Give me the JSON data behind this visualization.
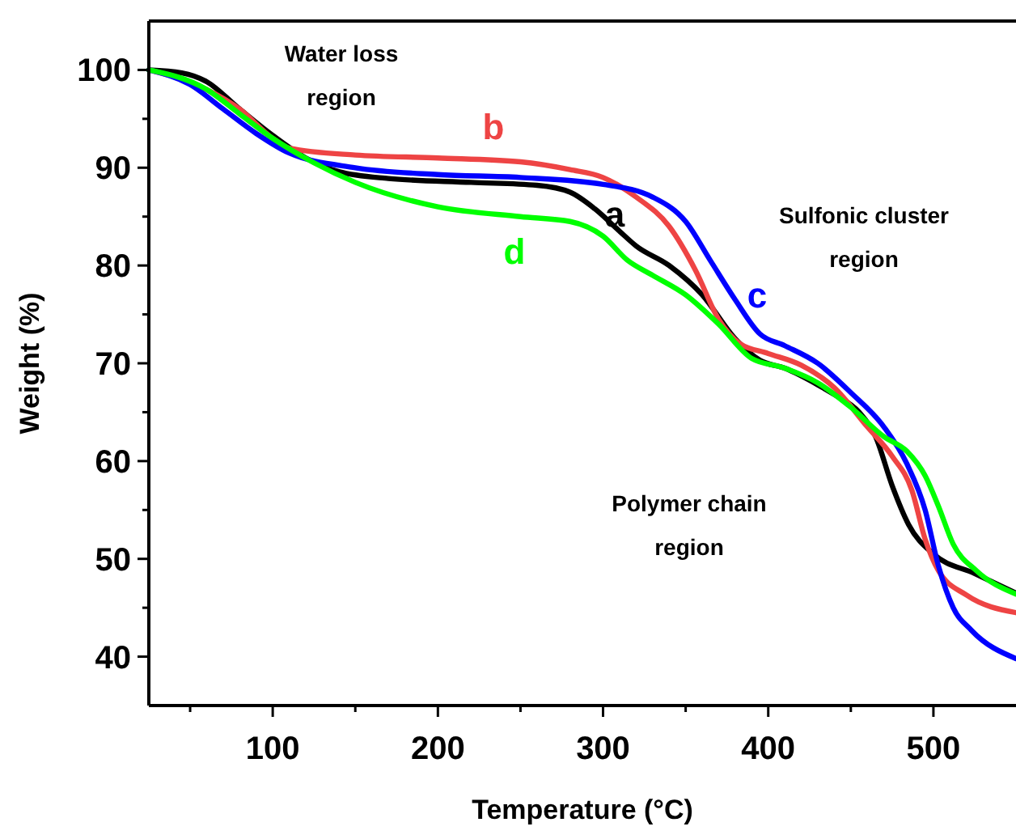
{
  "chart_data": {
    "type": "line",
    "xlabel": "Temperature (°C)",
    "ylabel": "Weight (%)",
    "xlim": [
      25,
      550
    ],
    "ylim": [
      35,
      105
    ],
    "xticks": [
      {
        "value": 50,
        "label": null
      },
      100,
      {
        "value": 150,
        "label": null
      },
      200,
      {
        "value": 250,
        "label": null
      },
      300,
      {
        "value": 350,
        "label": null
      },
      400,
      {
        "value": 450,
        "label": null
      },
      500
    ],
    "yticks": [
      40,
      {
        "value": 45,
        "label": null
      },
      50,
      {
        "value": 55,
        "label": null
      },
      60,
      {
        "value": 65,
        "label": null
      },
      70,
      {
        "value": 75,
        "label": null
      },
      80,
      {
        "value": 85,
        "label": null
      },
      90,
      {
        "value": 95,
        "label": null
      },
      100
    ],
    "grid": false,
    "marker": "none",
    "line_style": "solid",
    "annotations": [
      "Water loss\nregion",
      "Sulfonic cluster\nregion",
      "Polymer chain\nregion"
    ],
    "series": [
      {
        "name": "a",
        "color": "#000000",
        "x": [
          25,
          45,
          60,
          80,
          100,
          120,
          140,
          170,
          220,
          260,
          280,
          295,
          310,
          320,
          340,
          360,
          380,
          395,
          410,
          430,
          440,
          455,
          465,
          475,
          485,
          500,
          525,
          550
        ],
        "values": [
          100,
          99.7,
          98.8,
          96,
          93.3,
          91,
          89.6,
          88.9,
          88.5,
          88.2,
          87.5,
          85.8,
          83.5,
          82,
          80,
          77,
          72.5,
          70.3,
          69.5,
          67.8,
          66.8,
          65,
          62.5,
          57.5,
          53.5,
          50.5,
          48.5,
          46.5
        ]
      },
      {
        "name": "b",
        "color": "#ee4444",
        "x": [
          25,
          60,
          80,
          100,
          110,
          150,
          200,
          250,
          280,
          300,
          320,
          340,
          356,
          370,
          383,
          400,
          420,
          440,
          460,
          475,
          487,
          495,
          503,
          520,
          550
        ],
        "values": [
          100,
          98,
          96,
          93,
          92,
          91.3,
          91,
          90.6,
          89.8,
          89,
          87,
          84,
          79.5,
          74.5,
          72,
          71,
          69.8,
          67.5,
          63.5,
          60.5,
          57,
          52,
          48.8,
          46.3,
          44.5
        ]
      },
      {
        "name": "c",
        "color": "#0000ff",
        "x": [
          25,
          50,
          70,
          90,
          110,
          150,
          200,
          250,
          300,
          330,
          350,
          365,
          380,
          395,
          410,
          430,
          450,
          470,
          484,
          495,
          503,
          512,
          523,
          550
        ],
        "values": [
          100,
          98.5,
          96,
          93.5,
          91.5,
          90,
          89.3,
          89,
          88.3,
          87,
          84.5,
          80.5,
          76.5,
          73,
          71.8,
          70,
          67,
          63.5,
          59.7,
          55,
          49.3,
          45,
          42.7,
          39.8
        ]
      },
      {
        "name": "d",
        "color": "#00ff00",
        "x": [
          25,
          60,
          80,
          100,
          125,
          150,
          200,
          250,
          280,
          300,
          315,
          330,
          350,
          370,
          390,
          410,
          430,
          450,
          470,
          484,
          495,
          503,
          512,
          526,
          550
        ],
        "values": [
          100,
          98,
          95.5,
          93,
          90.5,
          88.5,
          86,
          85,
          84.5,
          83,
          80.5,
          79,
          77,
          74,
          70.5,
          69.5,
          68,
          65.5,
          62.5,
          61,
          58.5,
          55.4,
          51.5,
          48.8,
          46.4
        ]
      }
    ]
  }
}
